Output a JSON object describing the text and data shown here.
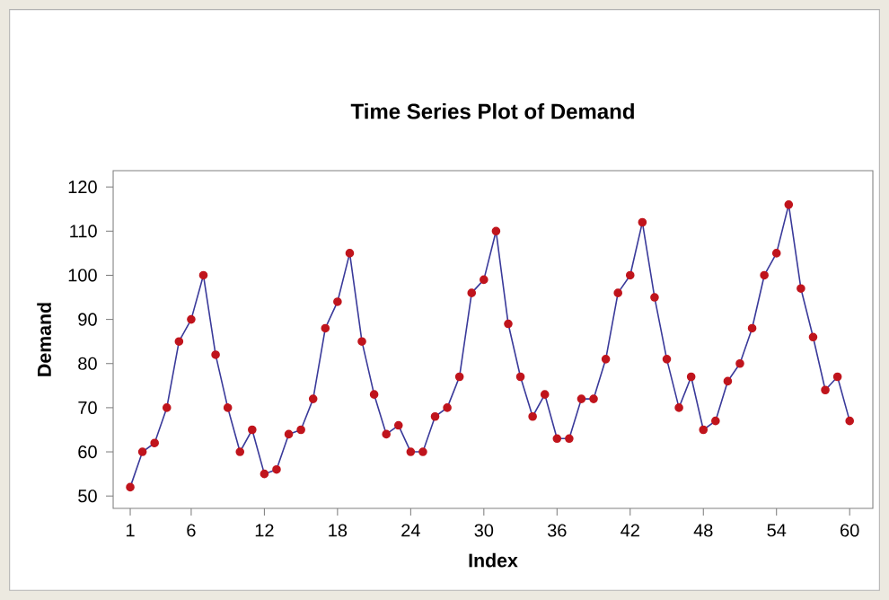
{
  "chart_data": {
    "type": "line",
    "title": "Time Series Plot of Demand",
    "xlabel": "Index",
    "ylabel": "Demand",
    "x": [
      1,
      2,
      3,
      4,
      5,
      6,
      7,
      8,
      9,
      10,
      11,
      12,
      13,
      14,
      15,
      16,
      17,
      18,
      19,
      20,
      21,
      22,
      23,
      24,
      25,
      26,
      27,
      28,
      29,
      30,
      31,
      32,
      33,
      34,
      35,
      36,
      37,
      38,
      39,
      40,
      41,
      42,
      43,
      44,
      45,
      46,
      47,
      48,
      49,
      50,
      51,
      52,
      53,
      54,
      55,
      56,
      57,
      58,
      59,
      60
    ],
    "series": [
      {
        "color": "#3a3a9a",
        "values": [
          52,
          60,
          62,
          70,
          85,
          90,
          100,
          82,
          70,
          60,
          65,
          55,
          56,
          64,
          65,
          72,
          88,
          94,
          105,
          85,
          73,
          64,
          66,
          60,
          60,
          68,
          70,
          77,
          96,
          99,
          110,
          89,
          77,
          68,
          73,
          63,
          63,
          72,
          72,
          81,
          96,
          100,
          112,
          95,
          81,
          70,
          77,
          65,
          67,
          76,
          80,
          88,
          100,
          105,
          116,
          97,
          86,
          74,
          77,
          67
        ]
      }
    ],
    "xlim": [
      -0.4,
      61.9
    ],
    "ylim": [
      47.2,
      123.7
    ],
    "xticks": [
      1,
      6,
      12,
      18,
      24,
      30,
      36,
      42,
      48,
      54,
      60
    ],
    "yticks": [
      50,
      60,
      70,
      80,
      90,
      100,
      110,
      120
    ],
    "marker": "circle",
    "line_style": "solid",
    "grid": false
  }
}
